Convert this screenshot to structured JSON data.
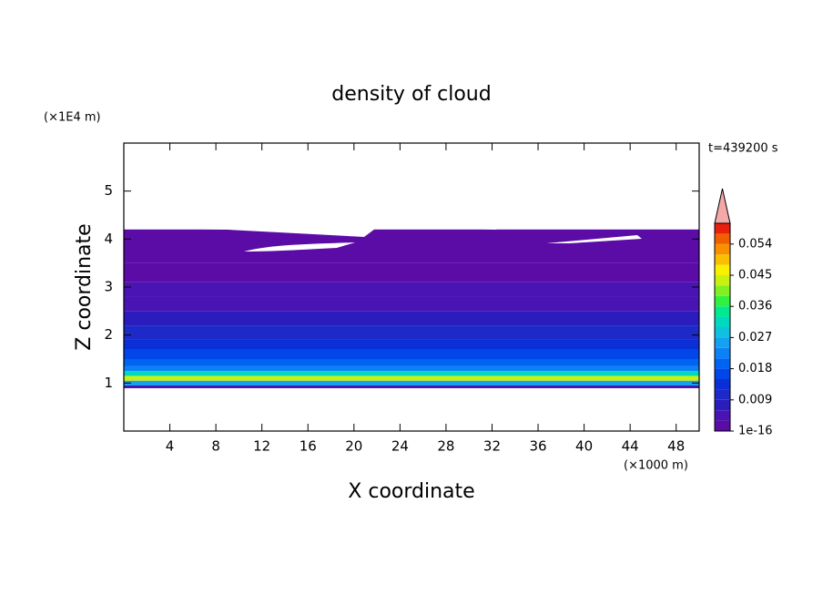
{
  "chart_data": {
    "type": "contour",
    "title": "density of cloud",
    "xlabel": "X coordinate",
    "ylabel": "Z coordinate",
    "x_unit": "(×1000 m)",
    "y_unit": "(×1E4 m)",
    "time_label": "t=439200 s",
    "xlim": [
      0,
      50
    ],
    "xticks": [
      4,
      8,
      12,
      16,
      20,
      24,
      28,
      32,
      36,
      40,
      44,
      48
    ],
    "ylim": [
      0,
      6
    ],
    "yticks": [
      1,
      2,
      3,
      4,
      5
    ],
    "field": {
      "zbins": [
        0.85,
        0.95,
        1.05,
        1.15,
        1.25,
        1.35,
        1.5,
        1.7,
        1.9,
        2.2,
        2.5,
        2.8,
        3.1,
        3.5,
        4.2
      ],
      "values": [
        0.004,
        0.024,
        0.042,
        0.03,
        0.022,
        0.018,
        0.015,
        0.012,
        0.009,
        0.006,
        0.005,
        0.004,
        0.002,
        0.001
      ]
    },
    "colorbar": {
      "clim": [
        0,
        0.06
      ],
      "ticks": [
        1e-16,
        0.009,
        0.018,
        0.027,
        0.036,
        0.045,
        0.054
      ],
      "colors": [
        "#5b0ca7",
        "#4a14b4",
        "#2b1cbe",
        "#1e2ac8",
        "#0a2fd6",
        "#0046e8",
        "#0064f2",
        "#0a82f5",
        "#15a0f0",
        "#10c0e0",
        "#00d8c0",
        "#00e890",
        "#30f040",
        "#80f020",
        "#c8f010",
        "#f8f000",
        "#f8c000",
        "#f89000",
        "#f06000",
        "#e82010"
      ],
      "extend_color": "#f4a8a8"
    }
  }
}
